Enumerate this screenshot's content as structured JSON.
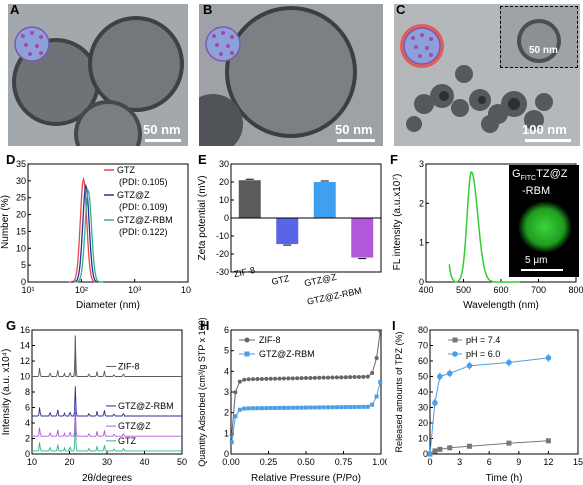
{
  "panels": {
    "A": {
      "label": "A",
      "scale": "50 nm"
    },
    "B": {
      "label": "B",
      "scale": "50 nm"
    },
    "C": {
      "label": "C",
      "scale": "100 nm",
      "inset_scale": "50 nm"
    },
    "D": {
      "label": "D"
    },
    "E": {
      "label": "E"
    },
    "F": {
      "label": "F",
      "inset_label_prefix": "G",
      "inset_label_sub": "FITC",
      "inset_label_rest": "TZ@Z",
      "inset_label_line2": "-RBM",
      "inset_scale": "5 μm"
    },
    "G": {
      "label": "G"
    },
    "H": {
      "label": "H"
    },
    "I": {
      "label": "I"
    }
  },
  "colors": {
    "gtz": "#e8474d",
    "gtzz": "#2b2f97",
    "gtzzrbm": "#2fb38f",
    "zif8": "#5b5b5b",
    "bar_gtz": "#5a64e6",
    "bar_gtzz": "#3fa0f0",
    "bar_rbm": "#b15ad9",
    "green": "#33cc33",
    "h_zif": "#666666",
    "h_rbm": "#4a9ee8",
    "i_low": "#777777",
    "i_high": "#4a9ee8"
  },
  "chart_data": [
    {
      "id": "D",
      "type": "line",
      "xlabel": "Diameter (nm)",
      "ylabel": "Number (%)",
      "xscale": "log",
      "xlim": [
        10,
        10000
      ],
      "ylim": [
        0,
        35
      ],
      "xticks": [
        "10¹",
        "10²",
        "10³",
        "10⁴"
      ],
      "yticks": [
        "0",
        "5",
        "10",
        "15",
        "20",
        "25",
        "30",
        "35"
      ],
      "series": [
        {
          "name": "GTZ",
          "pdi": "(PDI: 0.105)",
          "center": 110,
          "peak": 30.5
        },
        {
          "name": "GTZ@Z",
          "pdi": "(PDI: 0.109)",
          "center": 122,
          "peak": 28.5
        },
        {
          "name": "GTZ@Z-RBM",
          "pdi": "(PDI: 0.122)",
          "center": 135,
          "peak": 27
        }
      ]
    },
    {
      "id": "E",
      "type": "bar",
      "ylabel": "Zeta potential (mV)",
      "ylim": [
        -30,
        30
      ],
      "yticks": [
        "-30",
        "-20",
        "-10",
        "0",
        "10",
        "20",
        "30"
      ],
      "categories": [
        "ZIF-8",
        "GTZ",
        "GTZ@Z",
        "GTZ@Z-RBM"
      ],
      "values": [
        21,
        -14.5,
        20,
        -22
      ]
    },
    {
      "id": "F",
      "type": "line",
      "xlabel": "Wavelength (nm)",
      "ylabel": "FL intensity (a.u.x10⁷)",
      "xlim": [
        400,
        800
      ],
      "ylim": [
        0,
        3
      ],
      "xticks": [
        "400",
        "500",
        "600",
        "700",
        "800"
      ],
      "yticks": [
        "0",
        "1",
        "2",
        "3"
      ],
      "peak_x": 521,
      "peak_y": 2.8
    },
    {
      "id": "G",
      "type": "line",
      "xlabel": "2θ/degrees",
      "ylabel": "Intensity (a.u. x10⁴)",
      "xlim": [
        5,
        50
      ],
      "ylim": [
        0,
        16
      ],
      "xticks": [
        "10",
        "20",
        "30",
        "40",
        "50"
      ],
      "yticks": [
        "0",
        "2",
        "4",
        "6",
        "8",
        "10",
        "12",
        "14",
        "16"
      ],
      "series": [
        {
          "name": "ZIF-8",
          "offset": 10
        },
        {
          "name": "GTZ@Z-RBM",
          "offset": 4.9
        },
        {
          "name": "GTZ@Z",
          "offset": 2.3
        },
        {
          "name": "GTZ",
          "offset": 0.4
        }
      ]
    },
    {
      "id": "H",
      "type": "scatter",
      "xlabel": "Relative Pressure (P/Po)",
      "ylabel": "Quantity Adsorbed (cm³/g STP x 100)",
      "xlim": [
        0,
        1
      ],
      "ylim": [
        0,
        6
      ],
      "xticks": [
        "0.00",
        "0.25",
        "0.50",
        "0.75",
        "1.00"
      ],
      "yticks": [
        "0",
        "1",
        "2",
        "3",
        "4",
        "5",
        "6"
      ],
      "series": [
        {
          "name": "ZIF-8",
          "plateau": 3.6,
          "end": 5.8
        },
        {
          "name": "GTZ@Z-RBM",
          "plateau": 2.2,
          "end": 3.4
        }
      ]
    },
    {
      "id": "I",
      "type": "line",
      "xlabel": "Time (h)",
      "ylabel": "Released amounts of TPZ (%)",
      "xlim": [
        0,
        15
      ],
      "ylim": [
        0,
        80
      ],
      "xticks": [
        "0",
        "3",
        "6",
        "9",
        "12",
        "15"
      ],
      "yticks": [
        "0",
        "10",
        "20",
        "30",
        "40",
        "50",
        "60",
        "70",
        "80"
      ],
      "series": [
        {
          "name": "pH = 7.4",
          "x": [
            0,
            0.5,
            1,
            2,
            4,
            8,
            12
          ],
          "y": [
            0,
            2,
            3,
            4,
            5,
            7,
            8.5
          ]
        },
        {
          "name": "pH = 6.0",
          "x": [
            0,
            0.5,
            1,
            2,
            4,
            8,
            12
          ],
          "y": [
            0,
            33,
            50,
            52,
            57,
            59,
            62
          ]
        }
      ]
    }
  ]
}
